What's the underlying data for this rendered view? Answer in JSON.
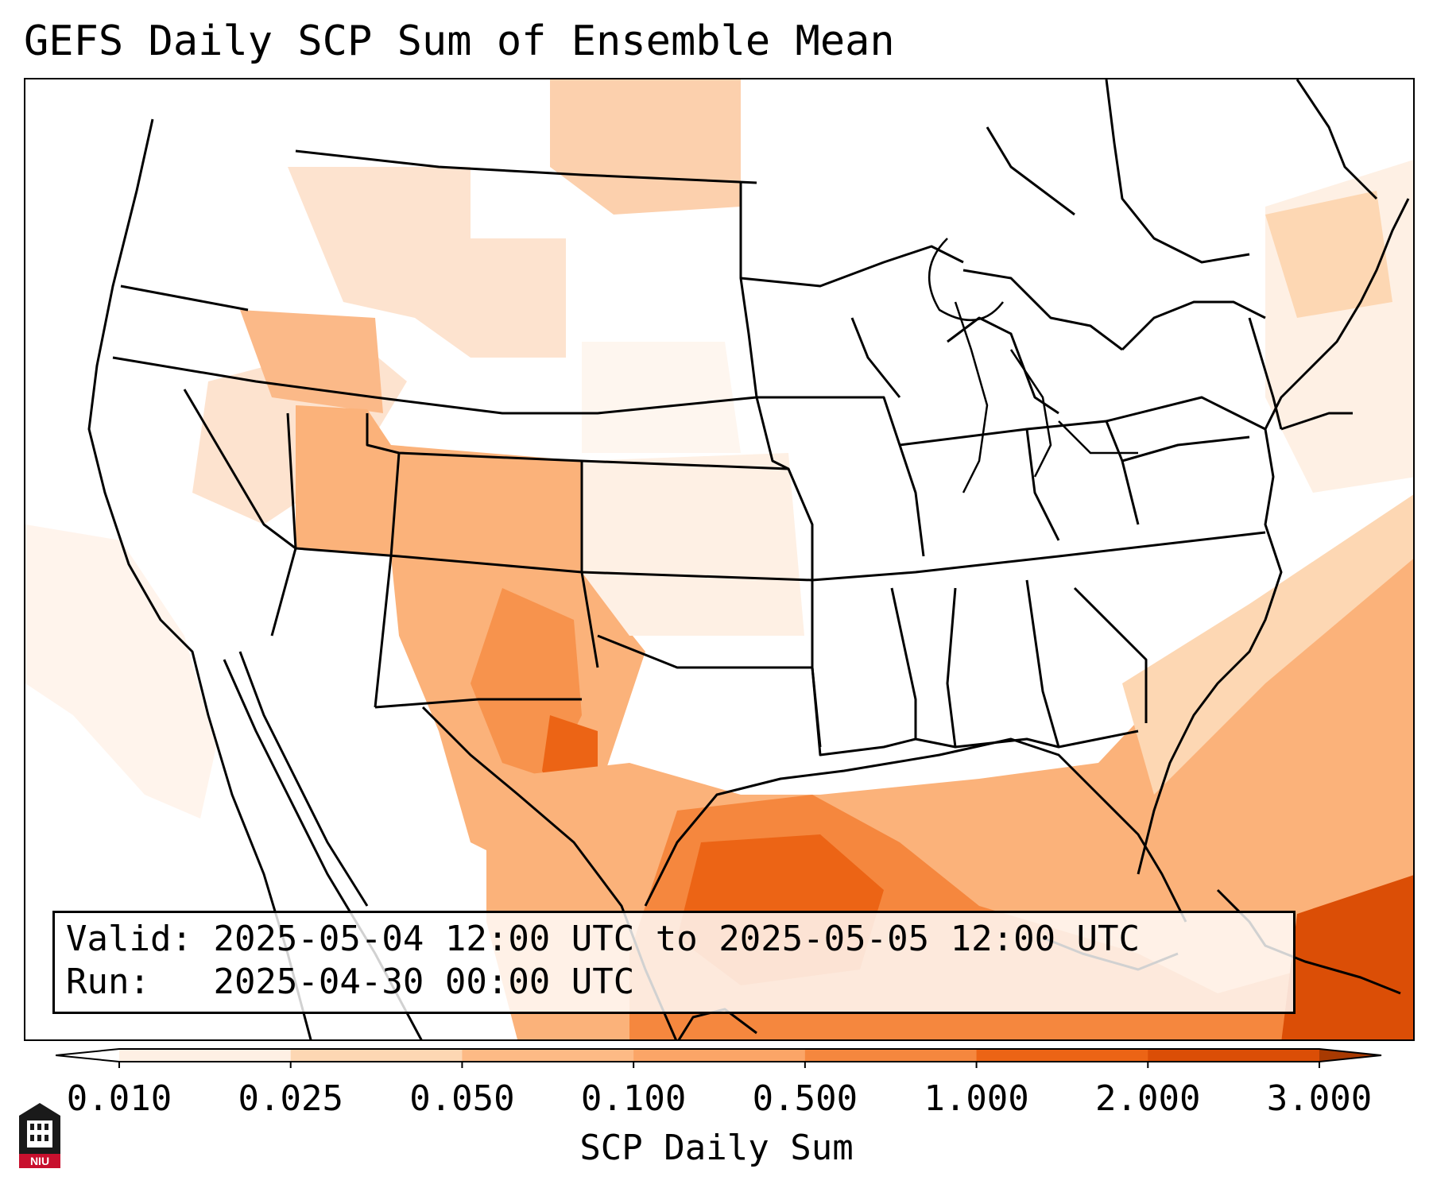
{
  "title": "GEFS Daily SCP Sum of Ensemble Mean",
  "info": {
    "valid_label": "Valid:",
    "valid_value": "2025-05-04 12:00 UTC to 2025-05-05 12:00 UTC",
    "run_label": "Run:",
    "run_value": "2025-04-30 00:00 UTC"
  },
  "colorbar": {
    "label": "SCP Daily Sum",
    "ticks": [
      "0.010",
      "0.025",
      "0.050",
      "0.100",
      "0.500",
      "1.000",
      "2.000",
      "3.000"
    ],
    "colors": [
      "#fef0e4",
      "#fdd7b3",
      "#fdba85",
      "#fba567",
      "#f5873e",
      "#ec6415",
      "#db4e06",
      "#b84004"
    ],
    "extend_low_color": "#ffffff",
    "extend_high_color": "#a83a02"
  },
  "logo": {
    "text": "NIU",
    "icon": "university-tower-icon"
  }
}
